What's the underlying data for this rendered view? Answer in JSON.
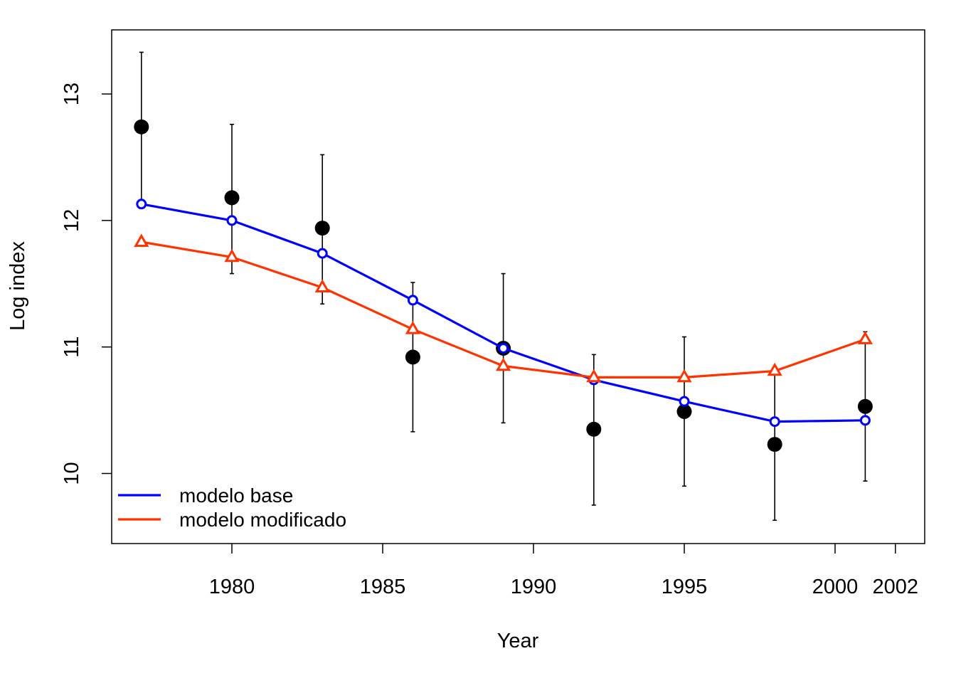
{
  "chart_data": {
    "type": "line",
    "xlabel": "Year",
    "ylabel": "Log index",
    "xlim": [
      1976,
      2003
    ],
    "ylim": [
      9.45,
      13.5
    ],
    "xticks": [
      1980,
      1985,
      1990,
      1995,
      2000,
      2002
    ],
    "yticks": [
      10,
      11,
      12,
      13
    ],
    "grid": false,
    "legend_position": "bottom-left",
    "observed": {
      "x": [
        1977,
        1980,
        1983,
        1986,
        1989,
        1992,
        1995,
        1998,
        2001
      ],
      "y": [
        12.74,
        12.18,
        11.94,
        10.92,
        10.99,
        10.35,
        10.49,
        10.23,
        10.53
      ],
      "lower": [
        12.13,
        11.58,
        11.34,
        10.33,
        10.4,
        9.75,
        9.9,
        9.63,
        9.94
      ],
      "upper": [
        13.33,
        12.76,
        12.52,
        11.51,
        11.58,
        10.94,
        11.08,
        10.82,
        11.12
      ],
      "color": "#000000"
    },
    "series": [
      {
        "name": "modelo base",
        "marker": "circle",
        "color": "#0000ff",
        "x": [
          1977,
          1980,
          1983,
          1986,
          1989,
          1992,
          1995,
          1998,
          2001
        ],
        "values": [
          12.13,
          12.0,
          11.74,
          11.37,
          10.99,
          10.74,
          10.57,
          10.41,
          10.42
        ]
      },
      {
        "name": "modelo modificado",
        "marker": "triangle",
        "color": "#ff3300",
        "x": [
          1977,
          1980,
          1983,
          1986,
          1989,
          1992,
          1995,
          1998,
          2001
        ],
        "values": [
          11.83,
          11.71,
          11.47,
          11.14,
          10.85,
          10.76,
          10.76,
          10.81,
          11.06
        ]
      }
    ]
  }
}
